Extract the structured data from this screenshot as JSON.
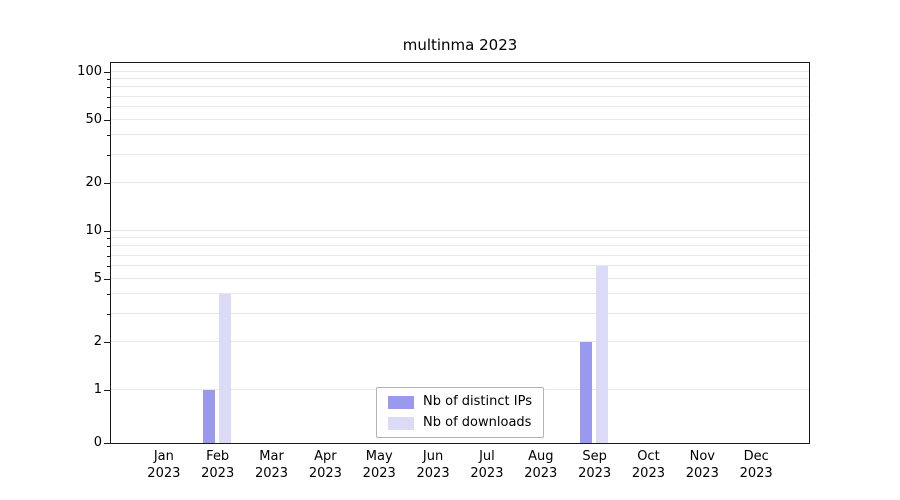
{
  "chart_data": {
    "type": "bar",
    "title": "multinma 2023",
    "categories": [
      "Jan",
      "Feb",
      "Mar",
      "Apr",
      "May",
      "Jun",
      "Jul",
      "Aug",
      "Sep",
      "Oct",
      "Nov",
      "Dec"
    ],
    "x_year": "2023",
    "series": [
      {
        "name": "Nb of distinct IPs",
        "color": "#9999ee",
        "values": [
          0,
          1,
          0,
          0,
          0,
          0,
          0,
          0,
          2,
          0,
          0,
          0
        ]
      },
      {
        "name": "Nb of downloads",
        "color": "#dbdbf7",
        "values": [
          0,
          4,
          0,
          0,
          0,
          0,
          0,
          0,
          6,
          0,
          0,
          0
        ]
      }
    ],
    "y_axis": {
      "scale": "symlog",
      "ticks": [
        0,
        1,
        2,
        5,
        10,
        20,
        50,
        100
      ],
      "minor_gridlines": [
        1,
        2,
        3,
        4,
        5,
        6,
        7,
        8,
        9,
        10,
        20,
        30,
        40,
        50,
        60,
        70,
        80,
        90,
        100
      ],
      "ylim": [
        0,
        115
      ]
    },
    "legend": {
      "position": "bottom-center",
      "entries": [
        "Nb of distinct IPs",
        "Nb of downloads"
      ]
    },
    "grid": true
  }
}
